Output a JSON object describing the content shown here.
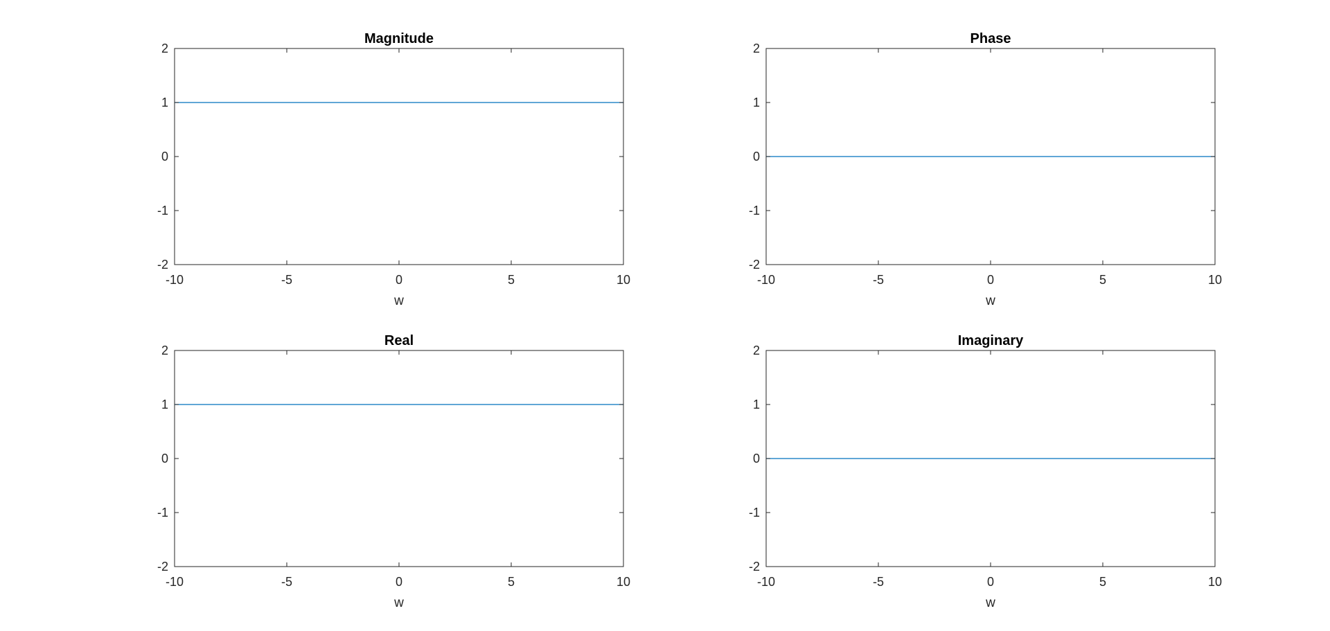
{
  "chart_data": [
    {
      "type": "line",
      "title": "Magnitude",
      "xlabel": "w",
      "ylabel": "",
      "xlim": [
        -10,
        10
      ],
      "ylim": [
        -2,
        2
      ],
      "xticks": [
        -10,
        -5,
        0,
        5,
        10
      ],
      "yticks": [
        -2,
        -1,
        0,
        1,
        2
      ],
      "xtick_labels": [
        "-10",
        "-5",
        "0",
        "5",
        "10"
      ],
      "ytick_labels": [
        "-2",
        "-1",
        "0",
        "1",
        "2"
      ],
      "grid": false,
      "box": true,
      "series": [
        {
          "x": [
            -10,
            10
          ],
          "y": [
            1,
            1
          ],
          "color": "#0072BD"
        }
      ]
    },
    {
      "type": "line",
      "title": "Phase",
      "xlabel": "w",
      "ylabel": "",
      "xlim": [
        -10,
        10
      ],
      "ylim": [
        -2,
        2
      ],
      "xticks": [
        -10,
        -5,
        0,
        5,
        10
      ],
      "yticks": [
        -2,
        -1,
        0,
        1,
        2
      ],
      "xtick_labels": [
        "-10",
        "-5",
        "0",
        "5",
        "10"
      ],
      "ytick_labels": [
        "-2",
        "-1",
        "0",
        "1",
        "2"
      ],
      "grid": false,
      "box": true,
      "series": [
        {
          "x": [
            -10,
            10
          ],
          "y": [
            0,
            0
          ],
          "color": "#0072BD"
        }
      ]
    },
    {
      "type": "line",
      "title": "Real",
      "xlabel": "w",
      "ylabel": "",
      "xlim": [
        -10,
        10
      ],
      "ylim": [
        -2,
        2
      ],
      "xticks": [
        -10,
        -5,
        0,
        5,
        10
      ],
      "yticks": [
        -2,
        -1,
        0,
        1,
        2
      ],
      "xtick_labels": [
        "-10",
        "-5",
        "0",
        "5",
        "10"
      ],
      "ytick_labels": [
        "-2",
        "-1",
        "0",
        "1",
        "2"
      ],
      "grid": false,
      "box": true,
      "series": [
        {
          "x": [
            -10,
            10
          ],
          "y": [
            1,
            1
          ],
          "color": "#0072BD"
        }
      ]
    },
    {
      "type": "line",
      "title": "Imaginary",
      "xlabel": "w",
      "ylabel": "",
      "xlim": [
        -10,
        10
      ],
      "ylim": [
        -2,
        2
      ],
      "xticks": [
        -10,
        -5,
        0,
        5,
        10
      ],
      "yticks": [
        -2,
        -1,
        0,
        1,
        2
      ],
      "xtick_labels": [
        "-10",
        "-5",
        "0",
        "5",
        "10"
      ],
      "ytick_labels": [
        "-2",
        "-1",
        "0",
        "1",
        "2"
      ],
      "grid": false,
      "box": true,
      "series": [
        {
          "x": [
            -10,
            10
          ],
          "y": [
            0,
            0
          ],
          "color": "#0072BD"
        }
      ]
    }
  ],
  "colors": {
    "background": "#ffffff",
    "axes": "#262626",
    "line": "#0072BD"
  }
}
